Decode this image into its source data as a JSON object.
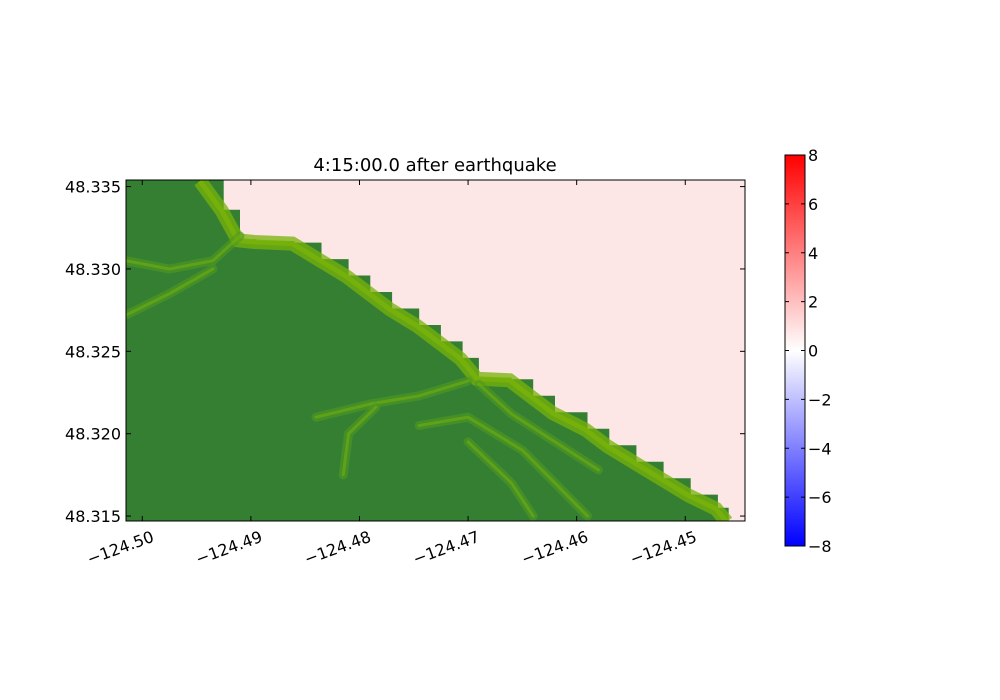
{
  "chart_data": {
    "type": "heatmap",
    "title": "4:15:00.0 after earthquake",
    "xlabel": "",
    "ylabel": "",
    "xlim": [
      -124.5015,
      -124.4445
    ],
    "ylim": [
      48.3147,
      48.3354
    ],
    "x_ticks": [
      -124.5,
      -124.49,
      -124.48,
      -124.47,
      -124.46,
      -124.45
    ],
    "x_tick_labels": [
      "−124.50",
      "−124.49",
      "−124.48",
      "−124.47",
      "−124.46",
      "−124.45"
    ],
    "y_ticks": [
      48.315,
      48.32,
      48.325,
      48.33,
      48.335
    ],
    "y_tick_labels": [
      "48.315",
      "48.320",
      "48.325",
      "48.330",
      "48.335"
    ],
    "x_tick_rotation": "rotated ~20°",
    "colorbar": {
      "range": [
        -8,
        8
      ],
      "ticks": [
        8,
        6,
        4,
        2,
        0,
        -2,
        -4,
        -6,
        -8
      ],
      "tick_labels": [
        "8",
        "6",
        "4",
        "2",
        "0",
        "−2",
        "−4",
        "−6",
        "−8"
      ],
      "colormap": "bwr",
      "color_low": "#0000ff",
      "color_mid": "#ffffff",
      "color_high": "#ff0000"
    },
    "water_color": "#fde6e6",
    "land_colors": {
      "dark": "#357f32",
      "mid": "#4e9a22",
      "light": "#77b20a"
    },
    "coastline_lon_lat": [
      [
        -124.4945,
        48.3354
      ],
      [
        -124.4925,
        48.3336
      ],
      [
        -124.491,
        48.3318
      ],
      [
        -124.4895,
        48.3317
      ],
      [
        -124.486,
        48.3316
      ],
      [
        -124.4835,
        48.3306
      ],
      [
        -124.481,
        48.3296
      ],
      [
        -124.479,
        48.3286
      ],
      [
        -124.477,
        48.3276
      ],
      [
        -124.4745,
        48.3266
      ],
      [
        -124.4725,
        48.3256
      ],
      [
        -124.4705,
        48.3246
      ],
      [
        -124.469,
        48.3234
      ],
      [
        -124.466,
        48.3233
      ],
      [
        -124.464,
        48.3223
      ],
      [
        -124.462,
        48.3213
      ],
      [
        -124.459,
        48.3203
      ],
      [
        -124.457,
        48.3193
      ],
      [
        -124.4545,
        48.3183
      ],
      [
        -124.452,
        48.3173
      ],
      [
        -124.4495,
        48.3163
      ],
      [
        -124.447,
        48.3155
      ],
      [
        -124.446,
        48.3147
      ]
    ]
  }
}
